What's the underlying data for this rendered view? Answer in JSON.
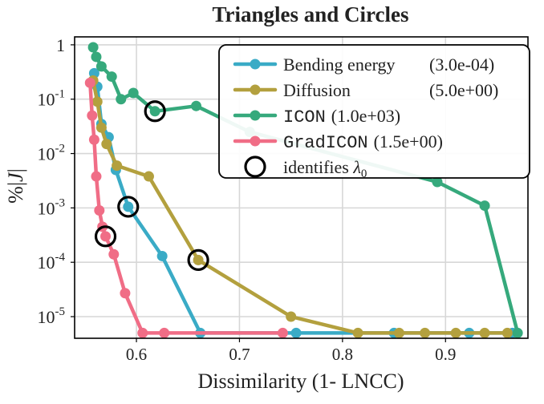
{
  "chart_data": {
    "type": "line",
    "title": "Triangles and Circles",
    "xlabel": "Dissimilarity (1- LNCC)",
    "ylabel": "%|J|",
    "xlim": [
      0.54,
      0.98
    ],
    "ylim": [
      4e-06,
      1.4
    ],
    "yscale": "log",
    "grid": true,
    "legend_position": "top-right",
    "x_ticks": [
      0.6,
      0.7,
      0.8,
      0.9
    ],
    "x_tick_labels": [
      "0.6",
      "0.7",
      "0.8",
      "0.9"
    ],
    "y_ticks": [
      {
        "value": 1,
        "label": "1",
        "base": "1",
        "exp": ""
      },
      {
        "value": 0.1,
        "label": "10^-1",
        "base": "10",
        "exp": "-1"
      },
      {
        "value": 0.01,
        "label": "10^-2",
        "base": "10",
        "exp": "-2"
      },
      {
        "value": 0.001,
        "label": "10^-3",
        "base": "10",
        "exp": "-3"
      },
      {
        "value": 0.0001,
        "label": "10^-4",
        "base": "10",
        "exp": "-4"
      },
      {
        "value": 1e-05,
        "label": "10^-5",
        "base": "10",
        "exp": "-5"
      }
    ],
    "series": [
      {
        "name": "Bending energy",
        "lambda": "(3.0e-04)",
        "mono": false,
        "color": "#3aabc6",
        "points": [
          [
            0.559,
            0.3
          ],
          [
            0.562,
            0.17
          ],
          [
            0.566,
            0.035
          ],
          [
            0.573,
            0.02
          ],
          [
            0.58,
            0.005
          ],
          [
            0.592,
            0.00105
          ],
          [
            0.625,
            0.00013
          ],
          [
            0.662,
            5e-06
          ],
          [
            0.755,
            5e-06
          ],
          [
            0.85,
            5e-06
          ],
          [
            0.923,
            5e-06
          ],
          [
            0.965,
            5e-06
          ]
        ]
      },
      {
        "name": "Diffusion",
        "lambda": "(5.0e+00)",
        "mono": false,
        "color": "#b3a03e",
        "points": [
          [
            0.558,
            0.22
          ],
          [
            0.562,
            0.09
          ],
          [
            0.566,
            0.03
          ],
          [
            0.571,
            0.015
          ],
          [
            0.581,
            0.006
          ],
          [
            0.612,
            0.0038
          ],
          [
            0.66,
            0.00011
          ],
          [
            0.75,
            1e-05
          ],
          [
            0.815,
            5e-06
          ],
          [
            0.855,
            5e-06
          ],
          [
            0.88,
            5e-06
          ],
          [
            0.91,
            5e-06
          ],
          [
            0.938,
            5e-06
          ],
          [
            0.96,
            5e-06
          ]
        ]
      },
      {
        "name": "ICON",
        "lambda": "(1.0e+03)",
        "mono": true,
        "color": "#36a97c",
        "points": [
          [
            0.558,
            0.9
          ],
          [
            0.561,
            0.6
          ],
          [
            0.566,
            0.4
          ],
          [
            0.576,
            0.26
          ],
          [
            0.585,
            0.1
          ],
          [
            0.597,
            0.13
          ],
          [
            0.618,
            0.06
          ],
          [
            0.658,
            0.075
          ],
          [
            0.71,
            0.025
          ],
          [
            0.892,
            0.003
          ],
          [
            0.938,
            0.0011
          ],
          [
            0.97,
            5e-06
          ]
        ]
      },
      {
        "name": "GradICON",
        "lambda": "(1.5e+00)",
        "mono": true,
        "color": "#f06d86",
        "points": [
          [
            0.555,
            0.2
          ],
          [
            0.557,
            0.05
          ],
          [
            0.559,
            0.018
          ],
          [
            0.561,
            0.0038
          ],
          [
            0.564,
            0.0009
          ],
          [
            0.567,
            0.00045
          ],
          [
            0.57,
            0.0003
          ],
          [
            0.578,
            0.00014
          ],
          [
            0.589,
            2.7e-05
          ],
          [
            0.606,
            5e-06
          ],
          [
            0.627,
            5e-06
          ],
          [
            0.742,
            5e-06
          ]
        ]
      }
    ],
    "lambda0_markers": [
      {
        "series": "ICON",
        "x": 0.618,
        "y": 0.06
      },
      {
        "series": "Bending energy",
        "x": 0.592,
        "y": 0.00105
      },
      {
        "series": "GradICON",
        "x": 0.57,
        "y": 0.0003
      },
      {
        "series": "Diffusion",
        "x": 0.66,
        "y": 0.00011
      }
    ],
    "legend_marker_label": "identifies",
    "legend_marker_symbol": "λ",
    "legend_marker_sub": "0"
  }
}
